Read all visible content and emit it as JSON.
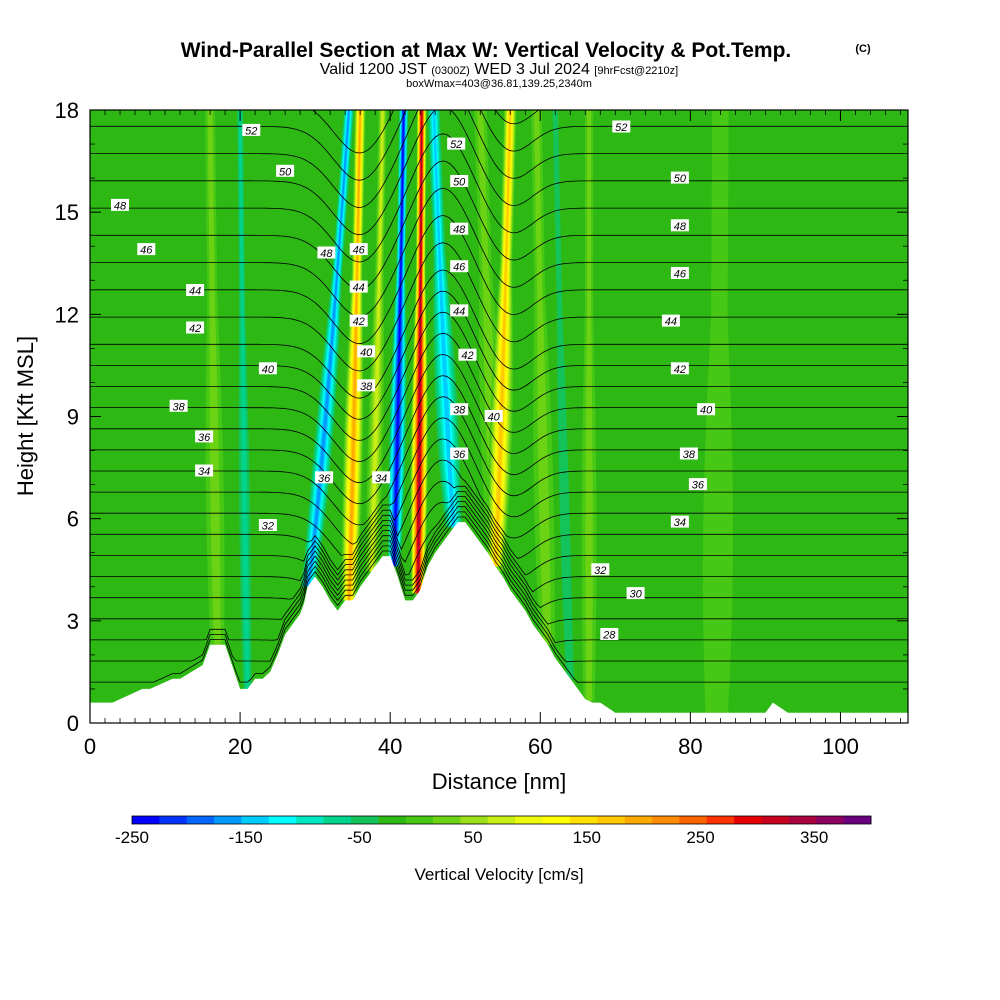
{
  "title": {
    "main": "Wind-Parallel Section at Max W: Vertical Velocity & Pot.Temp.",
    "copyright": "(C)",
    "valid_a": "Valid 1200 JST",
    "valid_utc": "(0300Z)",
    "valid_b": "WED 3 Jul 2024",
    "forecast": "[9hrFcst@2210z]",
    "box": "boxWmax=403@36.81,139.25,2340m"
  },
  "chart_data": {
    "type": "heatmap",
    "xlabel": "Distance [nm]",
    "ylabel": "Height [Kft MSL]",
    "xlim": [
      0,
      109
    ],
    "ylim": [
      0,
      18
    ],
    "xticks": [
      0,
      20,
      40,
      60,
      80,
      100
    ],
    "yticks": [
      0,
      3,
      6,
      9,
      12,
      15,
      18
    ],
    "colorbar": {
      "label": "Vertical Velocity [cm/s]",
      "ticks": [
        "-250",
        "-150",
        "-50",
        "50",
        "150",
        "250",
        "350"
      ],
      "tick_values": [
        -250,
        -150,
        -50,
        50,
        150,
        250,
        350
      ],
      "min": -250,
      "max": 400,
      "step": 25,
      "colors": [
        "#0000ff",
        "#0033ff",
        "#0066ff",
        "#0099ff",
        "#00ccff",
        "#00ffff",
        "#00e6c0",
        "#00d48c",
        "#14c45a",
        "#2db814",
        "#46c814",
        "#6cd214",
        "#9be01a",
        "#c8ee14",
        "#ecfa0f",
        "#ffff00",
        "#ffe000",
        "#ffc800",
        "#ffaa00",
        "#ff8c00",
        "#ff6400",
        "#ff3200",
        "#e60000",
        "#c80020",
        "#aa0040",
        "#8c0060",
        "#6a0080"
      ]
    },
    "terrain_profile": {
      "x": [
        0,
        3,
        7,
        8,
        11,
        12,
        15,
        16,
        18,
        20,
        21,
        22,
        23,
        24,
        25,
        26,
        28,
        28.5,
        29,
        30,
        31,
        32,
        33,
        34,
        35,
        36,
        37,
        38,
        39,
        40,
        41,
        42,
        43,
        44,
        45,
        46,
        47,
        48,
        49,
        50,
        51,
        52,
        53,
        54,
        55,
        56,
        57,
        58,
        59,
        60,
        61,
        62,
        63,
        64,
        65,
        66,
        67,
        68,
        70,
        71,
        72,
        74,
        75,
        80,
        90,
        91,
        93,
        94,
        96,
        97,
        98,
        99,
        100,
        101,
        109
      ],
      "y": [
        0.6,
        0.6,
        1.0,
        1.0,
        1.3,
        1.3,
        1.7,
        2.3,
        2.3,
        1.0,
        1.0,
        1.3,
        1.3,
        1.5,
        2.0,
        2.6,
        3.2,
        3.5,
        4.0,
        4.3,
        4.0,
        3.6,
        3.3,
        3.6,
        3.6,
        4.0,
        4.3,
        4.6,
        4.9,
        4.9,
        4.3,
        3.6,
        3.6,
        3.9,
        4.6,
        5.0,
        5.3,
        5.6,
        5.9,
        5.9,
        5.6,
        5.3,
        5.0,
        4.6,
        4.3,
        3.9,
        3.6,
        3.3,
        2.9,
        2.6,
        2.3,
        1.9,
        1.6,
        1.3,
        1.0,
        0.7,
        0.6,
        0.6,
        0.3,
        0.3,
        0.3,
        0.3,
        0.3,
        0.3,
        0.3,
        0.6,
        0.3,
        0.3,
        0.3,
        0.3,
        0.3,
        0.3,
        0.3,
        0.3,
        0.3
      ]
    },
    "vertical_velocity_bands": [
      {
        "x_top": 34.5,
        "x_bottom": 29.0,
        "width": 2.8,
        "w": -170
      },
      {
        "x_top": 41.8,
        "x_bottom": 40.5,
        "width": 2.4,
        "w": -250
      },
      {
        "x_top": 45.8,
        "x_bottom": 48.5,
        "width": 3.5,
        "w": -160
      },
      {
        "x_top": 36.0,
        "x_bottom": 34.5,
        "width": 2.6,
        "w": 230
      },
      {
        "x_top": 44.2,
        "x_bottom": 43.7,
        "width": 2.3,
        "w": 370
      },
      {
        "x_top": 56.0,
        "x_bottom": 54.0,
        "width": 3.0,
        "w": 200
      },
      {
        "x_top": 20.0,
        "x_bottom": 21.0,
        "width": 2.2,
        "w": -80
      },
      {
        "x_top": 28.5,
        "x_bottom": 26.0,
        "width": 3.0,
        "w": -20
      },
      {
        "x_top": 39.0,
        "x_bottom": 37.5,
        "width": 2.0,
        "w": 90
      },
      {
        "x_top": 52.0,
        "x_bottom": 54.5,
        "width": 3.0,
        "w": 60
      },
      {
        "x_top": 59.5,
        "x_bottom": 61.0,
        "width": 2.6,
        "w": 60
      },
      {
        "x_top": 62.0,
        "x_bottom": 64.0,
        "width": 2.6,
        "w": -60
      },
      {
        "x_top": 66.5,
        "x_bottom": 66.5,
        "width": 2.0,
        "w": 40
      },
      {
        "x_top": 16.0,
        "x_bottom": 17.0,
        "width": 2.4,
        "w": 40
      },
      {
        "x_top": 84.0,
        "x_bottom": 83.5,
        "width": 4.0,
        "w": 25
      }
    ],
    "theta_levels": [
      28,
      29,
      30,
      31,
      32,
      33,
      34,
      35,
      36,
      37,
      38,
      39,
      40,
      41,
      42,
      43,
      44,
      45,
      46,
      47,
      48,
      49,
      50,
      51,
      52,
      53
    ],
    "theta_labels": [
      {
        "text": "52",
        "x": 21.5,
        "y": 17.4
      },
      {
        "text": "50",
        "x": 26.0,
        "y": 16.2
      },
      {
        "text": "48",
        "x": 4.0,
        "y": 15.2
      },
      {
        "text": "46",
        "x": 7.5,
        "y": 13.9
      },
      {
        "text": "44",
        "x": 14.0,
        "y": 12.7
      },
      {
        "text": "42",
        "x": 14.0,
        "y": 11.6
      },
      {
        "text": "40",
        "x": 23.7,
        "y": 10.4
      },
      {
        "text": "38",
        "x": 11.8,
        "y": 9.3
      },
      {
        "text": "36",
        "x": 15.2,
        "y": 8.4
      },
      {
        "text": "34",
        "x": 15.2,
        "y": 7.4
      },
      {
        "text": "32",
        "x": 23.7,
        "y": 5.8
      },
      {
        "text": "48",
        "x": 31.5,
        "y": 13.8
      },
      {
        "text": "46",
        "x": 35.8,
        "y": 13.9
      },
      {
        "text": "44",
        "x": 35.8,
        "y": 12.8
      },
      {
        "text": "42",
        "x": 35.8,
        "y": 11.8
      },
      {
        "text": "40",
        "x": 36.8,
        "y": 10.9
      },
      {
        "text": "38",
        "x": 36.8,
        "y": 9.9
      },
      {
        "text": "36",
        "x": 31.2,
        "y": 7.2
      },
      {
        "text": "34",
        "x": 38.8,
        "y": 7.2
      },
      {
        "text": "52",
        "x": 48.8,
        "y": 17.0
      },
      {
        "text": "50",
        "x": 49.2,
        "y": 15.9
      },
      {
        "text": "48",
        "x": 49.2,
        "y": 14.5
      },
      {
        "text": "46",
        "x": 49.2,
        "y": 13.4
      },
      {
        "text": "44",
        "x": 49.2,
        "y": 12.1
      },
      {
        "text": "42",
        "x": 50.3,
        "y": 10.8
      },
      {
        "text": "38",
        "x": 49.2,
        "y": 9.2
      },
      {
        "text": "40",
        "x": 53.8,
        "y": 9.0
      },
      {
        "text": "36",
        "x": 49.2,
        "y": 7.9
      },
      {
        "text": "52",
        "x": 70.8,
        "y": 17.5
      },
      {
        "text": "50",
        "x": 78.6,
        "y": 16.0
      },
      {
        "text": "48",
        "x": 78.6,
        "y": 14.6
      },
      {
        "text": "46",
        "x": 78.6,
        "y": 13.2
      },
      {
        "text": "44",
        "x": 77.4,
        "y": 11.8
      },
      {
        "text": "42",
        "x": 78.6,
        "y": 10.4
      },
      {
        "text": "40",
        "x": 82.1,
        "y": 9.2
      },
      {
        "text": "38",
        "x": 79.8,
        "y": 7.9
      },
      {
        "text": "36",
        "x": 81.0,
        "y": 7.0
      },
      {
        "text": "34",
        "x": 78.6,
        "y": 5.9
      },
      {
        "text": "32",
        "x": 68.0,
        "y": 4.5
      },
      {
        "text": "30",
        "x": 72.7,
        "y": 3.8
      },
      {
        "text": "28",
        "x": 69.2,
        "y": 2.6
      }
    ]
  }
}
